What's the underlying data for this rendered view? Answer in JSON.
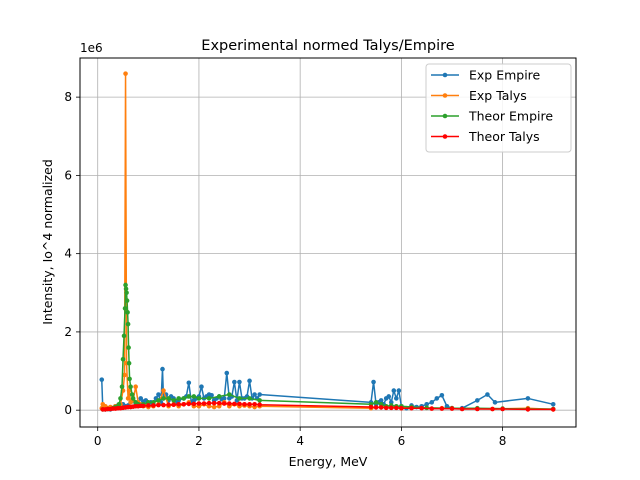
{
  "chart_data": {
    "type": "line",
    "title": "Experimental normed Talys/Empire",
    "xlabel": "Energy, MeV",
    "ylabel": "Intensity, Io^4 normalized",
    "y_offset_label": "1e6",
    "xlim": [
      -0.35,
      9.45
    ],
    "ylim": [
      -0.43,
      9.0
    ],
    "x_ticks": [
      0,
      2,
      4,
      6,
      8
    ],
    "y_ticks": [
      0,
      2,
      4,
      6,
      8
    ],
    "grid": true,
    "legend_position": "top-right",
    "series": [
      {
        "name": "Exp Empire",
        "color": "#1f77b4",
        "x": [
          0.08,
          0.1,
          0.15,
          0.2,
          0.25,
          0.3,
          0.35,
          0.4,
          0.45,
          0.5,
          0.55,
          0.6,
          0.65,
          0.7,
          0.75,
          0.8,
          0.85,
          0.9,
          0.95,
          1.0,
          1.05,
          1.1,
          1.15,
          1.2,
          1.25,
          1.28,
          1.3,
          1.35,
          1.4,
          1.45,
          1.5,
          1.55,
          1.6,
          1.7,
          1.75,
          1.8,
          1.85,
          1.9,
          1.95,
          2.0,
          2.05,
          2.1,
          2.15,
          2.2,
          2.25,
          2.3,
          2.35,
          2.4,
          2.45,
          2.5,
          2.55,
          2.6,
          2.65,
          2.7,
          2.75,
          2.8,
          2.85,
          2.9,
          2.95,
          3.0,
          3.05,
          3.1,
          3.15,
          3.2,
          5.4,
          5.45,
          5.5,
          5.55,
          5.6,
          5.65,
          5.7,
          5.75,
          5.8,
          5.85,
          5.9,
          5.95,
          6.0,
          6.1,
          6.2,
          6.3,
          6.4,
          6.5,
          6.6,
          6.7,
          6.8,
          6.9,
          7.0,
          7.2,
          7.5,
          7.7,
          7.85,
          8.5,
          9.0
        ],
        "y": [
          0.78,
          0.05,
          0.02,
          0.03,
          0.02,
          0.05,
          0.1,
          0.12,
          0.08,
          0.15,
          0.1,
          0.12,
          0.2,
          0.25,
          0.18,
          0.15,
          0.3,
          0.22,
          0.25,
          0.18,
          0.2,
          0.15,
          0.3,
          0.4,
          0.2,
          1.05,
          0.3,
          0.4,
          0.25,
          0.35,
          0.3,
          0.2,
          0.25,
          0.3,
          0.35,
          0.7,
          0.2,
          0.25,
          0.3,
          0.35,
          0.6,
          0.3,
          0.35,
          0.4,
          0.38,
          0.25,
          0.3,
          0.35,
          0.28,
          0.3,
          0.95,
          0.3,
          0.35,
          0.72,
          0.25,
          0.72,
          0.3,
          0.3,
          0.35,
          0.75,
          0.3,
          0.4,
          0.3,
          0.4,
          0.2,
          0.72,
          0.15,
          0.2,
          0.25,
          0.15,
          0.3,
          0.35,
          0.2,
          0.5,
          0.3,
          0.5,
          0.1,
          0.05,
          0.12,
          0.08,
          0.1,
          0.15,
          0.2,
          0.3,
          0.38,
          0.1,
          0.05,
          0.05,
          0.25,
          0.4,
          0.2,
          0.3,
          0.15
        ]
      },
      {
        "name": "Exp Talys",
        "color": "#ff7f0e",
        "x": [
          0.08,
          0.1,
          0.15,
          0.2,
          0.25,
          0.3,
          0.35,
          0.4,
          0.45,
          0.5,
          0.53,
          0.55,
          0.57,
          0.6,
          0.62,
          0.65,
          0.7,
          0.75,
          0.8,
          0.85,
          0.9,
          0.95,
          1.0,
          1.1,
          1.2,
          1.3,
          1.4,
          1.5,
          1.6,
          1.7,
          1.8,
          1.9,
          2.0,
          2.1,
          2.2,
          2.3,
          2.4,
          2.5,
          2.6,
          2.7,
          2.8,
          2.9,
          3.0,
          3.1,
          3.2,
          5.4,
          5.6,
          5.8,
          6.0,
          6.2,
          6.5,
          6.8,
          7.0,
          7.5,
          7.8,
          8.5,
          9.0
        ],
        "y": [
          0.05,
          0.15,
          0.1,
          0.05,
          0.08,
          0.05,
          0.1,
          0.08,
          0.15,
          0.5,
          0.9,
          8.6,
          1.2,
          0.3,
          0.5,
          0.2,
          0.25,
          0.6,
          0.2,
          0.15,
          0.1,
          0.12,
          0.08,
          0.1,
          0.15,
          0.5,
          0.1,
          0.15,
          0.1,
          0.15,
          0.2,
          0.1,
          0.1,
          0.15,
          0.1,
          0.08,
          0.1,
          0.2,
          0.1,
          0.15,
          0.1,
          0.12,
          0.1,
          0.08,
          0.1,
          0.05,
          0.08,
          0.1,
          0.05,
          0.08,
          0.06,
          0.05,
          0.05,
          0.04,
          0.03,
          0.05,
          0.02
        ]
      },
      {
        "name": "Theor Empire",
        "color": "#2ca02c",
        "x": [
          0.1,
          0.2,
          0.3,
          0.35,
          0.4,
          0.42,
          0.45,
          0.48,
          0.5,
          0.52,
          0.54,
          0.55,
          0.56,
          0.57,
          0.58,
          0.59,
          0.6,
          0.61,
          0.62,
          0.63,
          0.65,
          0.68,
          0.7,
          0.75,
          0.8,
          0.9,
          1.0,
          1.1,
          1.2,
          1.3,
          1.4,
          1.5,
          1.6,
          1.7,
          1.8,
          1.9,
          2.0,
          2.2,
          2.4,
          2.6,
          2.8,
          3.0,
          3.2,
          5.4,
          5.5,
          5.6,
          5.7,
          5.8,
          5.9,
          6.0,
          6.2,
          6.5,
          7.0,
          7.5,
          8.0,
          8.5,
          9.0
        ],
        "y": [
          0.02,
          0.03,
          0.05,
          0.08,
          0.1,
          0.15,
          0.3,
          0.6,
          1.3,
          1.9,
          2.6,
          3.2,
          3.1,
          3.0,
          2.8,
          2.5,
          2.2,
          1.6,
          1.2,
          0.8,
          0.6,
          0.4,
          0.3,
          0.2,
          0.15,
          0.15,
          0.2,
          0.2,
          0.25,
          0.3,
          0.3,
          0.25,
          0.3,
          0.3,
          0.35,
          0.35,
          0.3,
          0.3,
          0.35,
          0.4,
          0.3,
          0.3,
          0.25,
          0.15,
          0.2,
          0.15,
          0.1,
          0.12,
          0.1,
          0.1,
          0.08,
          0.06,
          0.05,
          0.05,
          0.04,
          0.03,
          0.03
        ]
      },
      {
        "name": "Theor Talys",
        "color": "#ff0000",
        "x": [
          0.1,
          0.15,
          0.2,
          0.25,
          0.3,
          0.35,
          0.4,
          0.45,
          0.5,
          0.55,
          0.6,
          0.65,
          0.7,
          0.75,
          0.8,
          0.85,
          0.9,
          1.0,
          1.1,
          1.2,
          1.3,
          1.4,
          1.5,
          1.6,
          1.7,
          1.8,
          1.9,
          2.0,
          2.1,
          2.2,
          2.3,
          2.4,
          2.5,
          2.6,
          2.7,
          2.8,
          2.9,
          3.0,
          3.1,
          3.2,
          5.4,
          5.5,
          5.6,
          5.7,
          5.8,
          5.9,
          6.0,
          6.2,
          6.4,
          6.6,
          6.8,
          7.0,
          7.2,
          7.5,
          7.8,
          8.0,
          8.5,
          9.0
        ],
        "y": [
          0.02,
          0.02,
          0.03,
          0.03,
          0.04,
          0.04,
          0.05,
          0.05,
          0.06,
          0.07,
          0.08,
          0.08,
          0.09,
          0.1,
          0.1,
          0.11,
          0.11,
          0.12,
          0.12,
          0.13,
          0.13,
          0.14,
          0.14,
          0.15,
          0.15,
          0.16,
          0.16,
          0.17,
          0.17,
          0.18,
          0.18,
          0.18,
          0.17,
          0.17,
          0.16,
          0.16,
          0.15,
          0.15,
          0.15,
          0.14,
          0.08,
          0.07,
          0.07,
          0.06,
          0.06,
          0.06,
          0.05,
          0.05,
          0.05,
          0.04,
          0.04,
          0.04,
          0.03,
          0.03,
          0.03,
          0.03,
          0.02,
          0.02
        ]
      }
    ]
  }
}
